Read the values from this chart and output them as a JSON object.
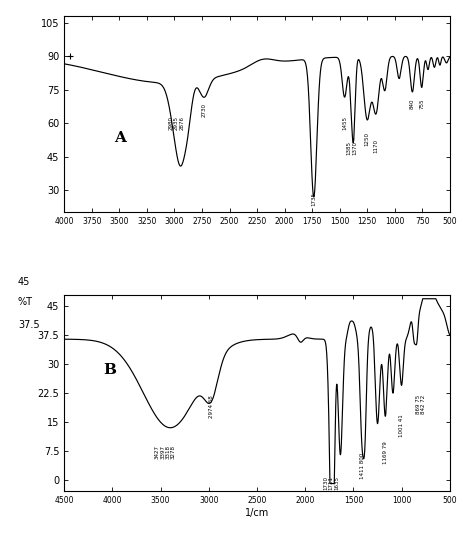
{
  "panel_A": {
    "label": "A",
    "ylabel": "%T",
    "ylim": [
      20,
      108
    ],
    "yticks": [
      30,
      45,
      60,
      75,
      90,
      105
    ],
    "xlim": [
      500,
      4000
    ],
    "xticks": [
      500,
      750,
      1000,
      1250,
      1500,
      1750,
      2000,
      2250,
      2500,
      2750,
      3000,
      3250,
      3500,
      3750,
      4000
    ],
    "xticklabels": [
      "500",
      "750",
      "1000",
      "1250",
      "1500",
      "1750",
      "2000",
      "2250",
      "2500",
      "2750",
      "3000",
      "3250",
      "3500",
      "3750",
      "4000"
    ]
  },
  "panel_B": {
    "label": "B",
    "ylabel_line1": "45",
    "ylabel_line2": "%T",
    "ylabel_line3": "37.5",
    "ylim": [
      -3,
      48
    ],
    "yticks": [
      0,
      7.5,
      15,
      22.5,
      30,
      37.5,
      45
    ],
    "ytick_labels": [
      "0",
      "7.5",
      "15",
      "22.5",
      "30",
      "37.5",
      "45"
    ],
    "xlim": [
      500,
      4500
    ],
    "xticks": [
      500,
      1000,
      1500,
      2000,
      2500,
      3000,
      3500,
      4000,
      4500
    ],
    "xticklabels": [
      "500",
      "1000",
      "1500",
      "2000",
      "2500",
      "3000",
      "3500",
      "4000",
      "4500"
    ],
    "xlabel": "1/cm"
  },
  "line_color": "#000000",
  "bg_color": "#ffffff"
}
